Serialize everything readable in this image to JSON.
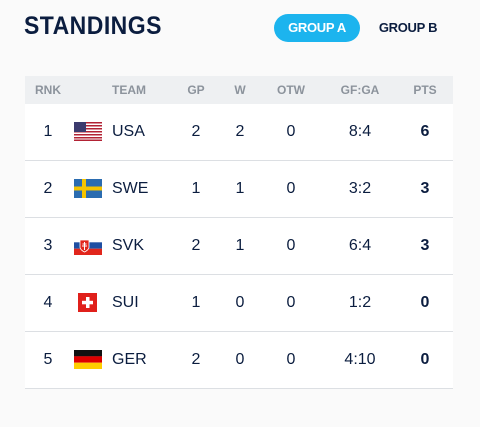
{
  "header": {
    "title": "STANDINGS",
    "tabs": [
      "GROUP A",
      "GROUP B"
    ]
  },
  "table": {
    "columns": [
      "RNK",
      "TEAM",
      "GP",
      "W",
      "OTW",
      "GF:GA",
      "PTS"
    ],
    "rows": [
      [
        1,
        "USA",
        2,
        2,
        0,
        "8:4",
        6
      ],
      [
        2,
        "SWE",
        1,
        1,
        0,
        "3:2",
        3
      ],
      [
        3,
        "SVK",
        2,
        1,
        0,
        "6:4",
        3
      ],
      [
        4,
        "SUI",
        1,
        0,
        0,
        "1:2",
        0
      ],
      [
        5,
        "GER",
        2,
        0,
        0,
        "4:10",
        0
      ]
    ]
  }
}
